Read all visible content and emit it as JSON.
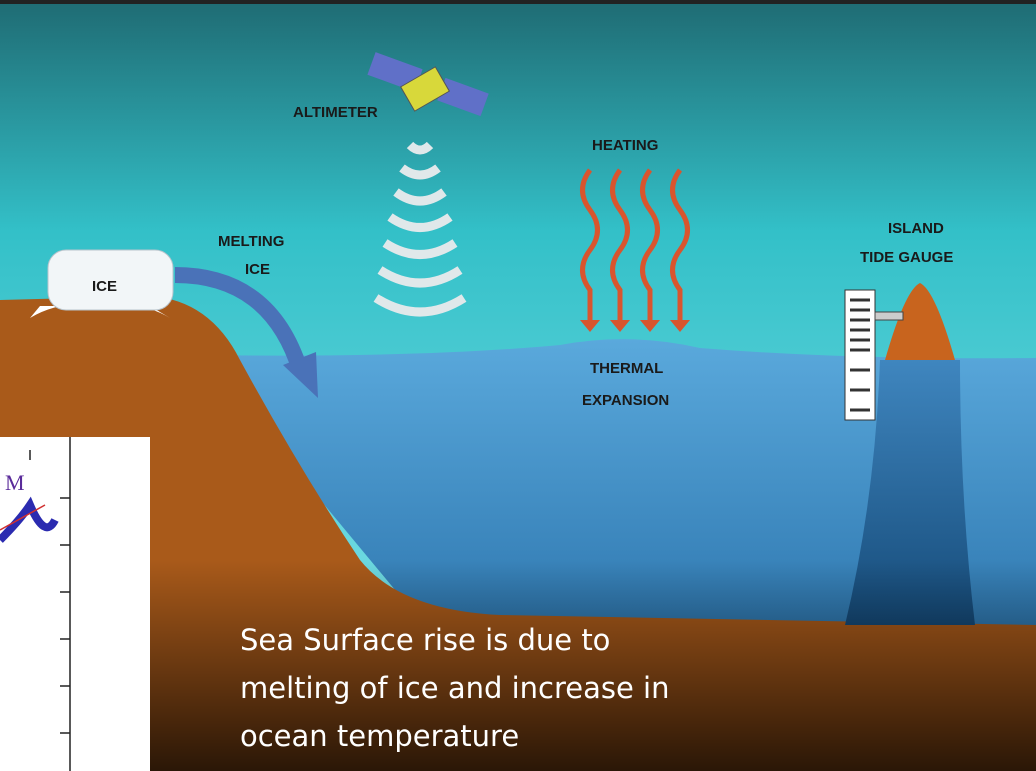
{
  "labels": {
    "altimeter": "ALTIMETER",
    "heating": "HEATING",
    "melting": [
      "MELTING",
      "ICE"
    ],
    "ice": "ICE",
    "tide_gauge": [
      "ISLAND",
      "TIDE GAUGE"
    ],
    "thermal": [
      "THERMAL",
      "EXPANSION"
    ]
  },
  "inset": {
    "label": "M"
  },
  "caption": [
    "Sea Surface rise is due to",
    "melting of ice and increase in",
    "ocean temperature"
  ]
}
